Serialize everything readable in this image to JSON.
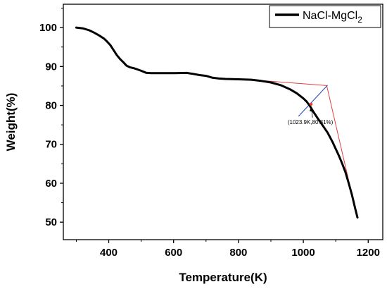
{
  "chart_data": {
    "type": "line",
    "xlabel": "Temperature(K)",
    "ylabel": "Weight(%)",
    "xlim": [
      260,
      1245
    ],
    "ylim": [
      45.5,
      106
    ],
    "xticks": [
      400,
      600,
      800,
      1000,
      1200
    ],
    "yticks": [
      50,
      60,
      70,
      80,
      90,
      100
    ],
    "legend_position": "top-right",
    "series": [
      {
        "name": "NaCl-MgCl",
        "name_subscript": "2",
        "color": "#000000",
        "x": [
          300,
          320,
          340,
          355,
          370,
          385,
          395,
          405,
          415,
          425,
          435,
          445,
          455,
          465,
          480,
          500,
          515,
          530,
          550,
          600,
          640,
          660,
          680,
          700,
          720,
          740,
          760,
          800,
          840,
          870,
          900,
          930,
          960,
          980,
          1000,
          1010,
          1020,
          1030,
          1045,
          1060,
          1075,
          1090,
          1100,
          1110,
          1120,
          1130,
          1140,
          1150,
          1160,
          1167
        ],
        "y": [
          100,
          99.8,
          99.3,
          98.7,
          98,
          97.2,
          96.4,
          95.5,
          94.2,
          92.9,
          91.9,
          91.1,
          90.2,
          89.8,
          89.5,
          88.9,
          88.4,
          88.3,
          88.3,
          88.3,
          88.35,
          88.1,
          87.8,
          87.6,
          87.1,
          86.9,
          86.8,
          86.7,
          86.6,
          86.3,
          85.9,
          85.2,
          84.1,
          83.1,
          81.8,
          81,
          79.9,
          78.5,
          76.6,
          74.8,
          73,
          70.6,
          68.8,
          67,
          65,
          62.8,
          60,
          57,
          53.5,
          51.2
        ]
      }
    ],
    "tangent_lines": [
      {
        "color": "#e04040",
        "x": [
          830,
          1072
        ],
        "y": [
          86.65,
          85.1
        ]
      },
      {
        "color": "#e04040",
        "x": [
          1072,
          1166
        ],
        "y": [
          85.1,
          51.3
        ]
      },
      {
        "color": "#2040c0",
        "x": [
          985,
          1075
        ],
        "y": [
          77.2,
          85.2
        ]
      }
    ],
    "annotation": {
      "text": "(1023.9K,80.31%)",
      "point_x": 1023.9,
      "point_y": 80.31,
      "marker_color": "#e04040"
    }
  }
}
